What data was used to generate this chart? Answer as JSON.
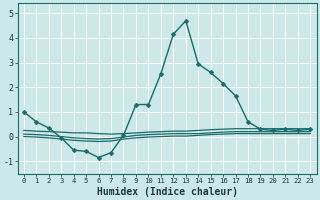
{
  "title": "",
  "xlabel": "Humidex (Indice chaleur)",
  "ylabel": "",
  "bg_color": "#cce8e8",
  "grid_color": "#ffffff",
  "line_color": "#1a6b6b",
  "xlim": [
    -0.5,
    23.5
  ],
  "ylim": [
    -1.5,
    5.4
  ],
  "yticks": [
    -1,
    0,
    1,
    2,
    3,
    4,
    5
  ],
  "xticks": [
    0,
    1,
    2,
    3,
    4,
    5,
    6,
    7,
    8,
    9,
    10,
    11,
    12,
    13,
    14,
    15,
    16,
    17,
    18,
    19,
    20,
    21,
    22,
    23
  ],
  "xtick_labels": [
    "0",
    "1",
    "2",
    "3",
    "4",
    "5",
    "6",
    "7",
    "8",
    "9",
    "10",
    "11",
    "12",
    "13",
    "14",
    "15",
    "16",
    "17",
    "18",
    "19",
    "20",
    "21",
    "22",
    "23"
  ],
  "line1_x": [
    0,
    1,
    2,
    3,
    4,
    5,
    6,
    7,
    8,
    9,
    10,
    11,
    12,
    13,
    14,
    15,
    16,
    17,
    18,
    19,
    20,
    21,
    22,
    23
  ],
  "line1_y": [
    1.0,
    0.6,
    0.35,
    -0.05,
    -0.55,
    -0.6,
    -0.85,
    -0.65,
    0.05,
    1.3,
    1.3,
    2.55,
    4.15,
    4.7,
    2.95,
    2.6,
    2.15,
    1.65,
    0.6,
    0.3,
    0.25,
    0.3,
    0.25,
    0.3
  ],
  "line2_x": [
    0,
    1,
    2,
    3,
    4,
    5,
    6,
    7,
    8,
    9,
    10,
    11,
    12,
    13,
    14,
    15,
    16,
    17,
    18,
    19,
    20,
    21,
    22,
    23
  ],
  "line2_y": [
    0.25,
    0.22,
    0.2,
    0.18,
    0.15,
    0.15,
    0.12,
    0.1,
    0.12,
    0.15,
    0.18,
    0.2,
    0.22,
    0.22,
    0.25,
    0.28,
    0.3,
    0.32,
    0.32,
    0.32,
    0.32,
    0.32,
    0.32,
    0.32
  ],
  "line3_x": [
    0,
    1,
    2,
    3,
    4,
    5,
    6,
    7,
    8,
    9,
    10,
    11,
    12,
    13,
    14,
    15,
    16,
    17,
    18,
    19,
    20,
    21,
    22,
    23
  ],
  "line3_y": [
    0.1,
    0.08,
    0.05,
    0.0,
    -0.05,
    -0.08,
    -0.1,
    -0.08,
    -0.02,
    0.05,
    0.08,
    0.1,
    0.12,
    0.12,
    0.12,
    0.15,
    0.18,
    0.2,
    0.2,
    0.2,
    0.2,
    0.2,
    0.2,
    0.2
  ],
  "line4_x": [
    0,
    1,
    2,
    3,
    4,
    5,
    6,
    7,
    8,
    9,
    10,
    11,
    12,
    13,
    14,
    15,
    16,
    17,
    18,
    19,
    20,
    21,
    22,
    23
  ],
  "line4_y": [
    0.0,
    -0.02,
    -0.05,
    -0.1,
    -0.15,
    -0.18,
    -0.2,
    -0.18,
    -0.1,
    -0.05,
    -0.02,
    0.0,
    0.02,
    0.02,
    0.05,
    0.08,
    0.1,
    0.12,
    0.12,
    0.12,
    0.12,
    0.12,
    0.12,
    0.12
  ],
  "marker_size": 2.5,
  "line_width": 1.0,
  "xlabel_fontsize": 7,
  "tick_fontsize": 5.5
}
